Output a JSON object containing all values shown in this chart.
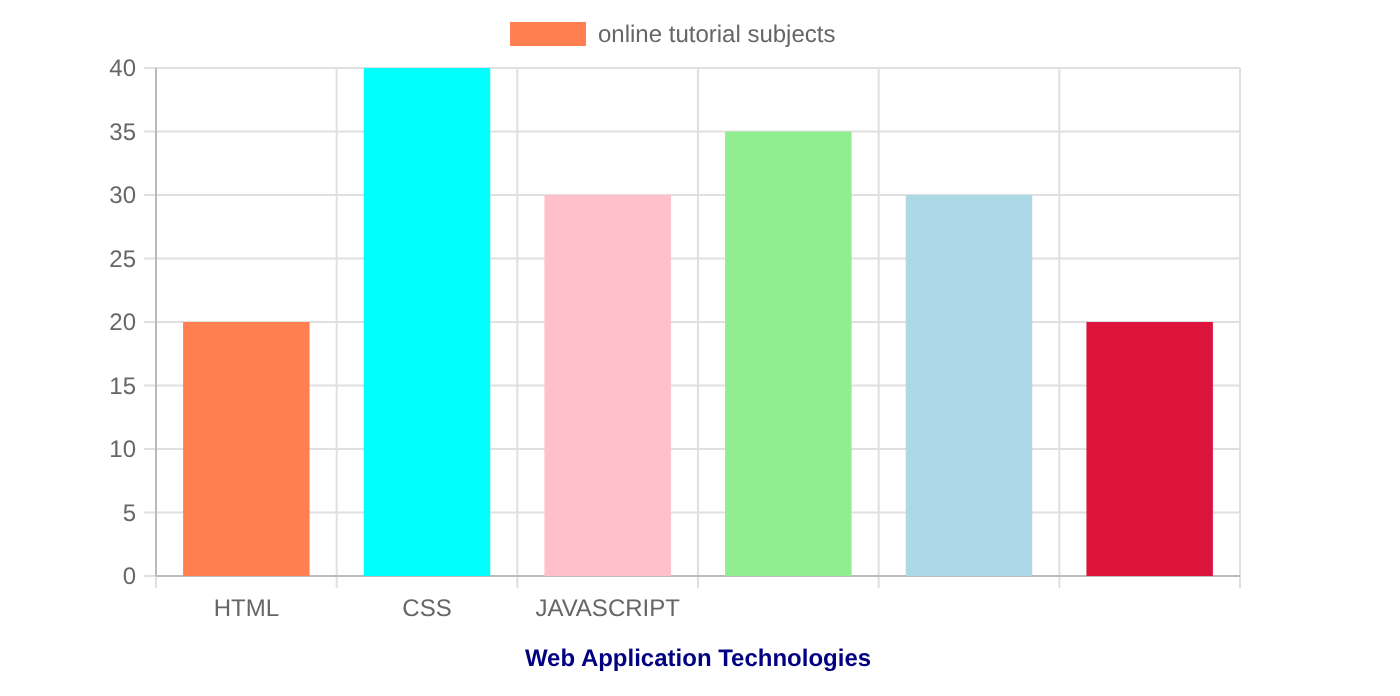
{
  "chart_data": {
    "type": "bar",
    "xlabel": "Web Application Technologies",
    "categories": [
      "HTML",
      "CSS",
      "JAVASCRIPT",
      null,
      null,
      null
    ],
    "series": [
      {
        "name": "online tutorial subjects",
        "color": "#ff7f50",
        "colors": [
          "#ff7f50",
          "#00ffff",
          "#ffc0cb",
          "#90ee90",
          "#add8e6",
          "#dc143c"
        ],
        "values": [
          20,
          40,
          30,
          35,
          30,
          20
        ]
      }
    ],
    "ylim": [
      0,
      40
    ],
    "yticks": [
      0,
      5,
      10,
      15,
      20,
      25,
      30,
      35,
      40
    ],
    "grid": true,
    "legend": "top"
  }
}
